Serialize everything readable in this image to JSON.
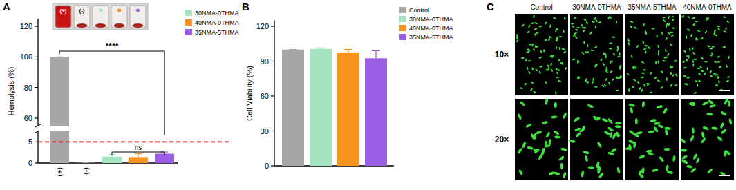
{
  "chart_data": [
    {
      "type": "bar",
      "panel_label": "A",
      "y_label": "Hemolysis (%)",
      "categories": [
        "(+)",
        "(-)",
        null,
        null,
        null
      ],
      "values": [
        100,
        0.05,
        1.5,
        1.4,
        2.2
      ],
      "errors": [
        0,
        0,
        0.5,
        0.8,
        0.4
      ],
      "colors": [
        "#a6a6a6",
        "#a6a6a6",
        "#a3e4bf",
        "#f7931e",
        "#9b5de5"
      ],
      "legend_names": [
        "30NMA-0THMA",
        "40NMA-0THMA",
        "35NMA-5THMA"
      ],
      "legend": "upper right",
      "ylim": [
        0,
        125
      ],
      "ybreak": [
        7.5,
        55
      ],
      "yticks": [
        0,
        5,
        60,
        80,
        100,
        120
      ],
      "threshold": 5,
      "annotations": [
        {
          "text": "****"
        },
        {
          "text": "ns"
        }
      ],
      "grid": false
    },
    {
      "type": "bar",
      "panel_label": "B",
      "y_label": "Cell Viability (%)",
      "categories": [
        null,
        null,
        null,
        null
      ],
      "values": [
        100,
        100.5,
        97.5,
        92.5
      ],
      "errors": [
        0,
        0.8,
        2.5,
        6.5
      ],
      "colors": [
        "#a6a6a6",
        "#a3e4bf",
        "#f7931e",
        "#9b5de5"
      ],
      "legend_names": [
        "Control",
        "30NMA-0THMA",
        "40NMA-0THMA",
        "35NMA-5THMA"
      ],
      "legend": "upper right",
      "ylim": [
        0,
        125
      ],
      "yticks": [
        0,
        30,
        60,
        90,
        120
      ],
      "grid": false
    }
  ],
  "image_panel": {
    "panel_label": "C",
    "columns": [
      "Control",
      "30NMA-0THMA",
      "35NMA-5THMA",
      "40NMA-0THMA"
    ],
    "rows": [
      "10×",
      "20×"
    ]
  }
}
